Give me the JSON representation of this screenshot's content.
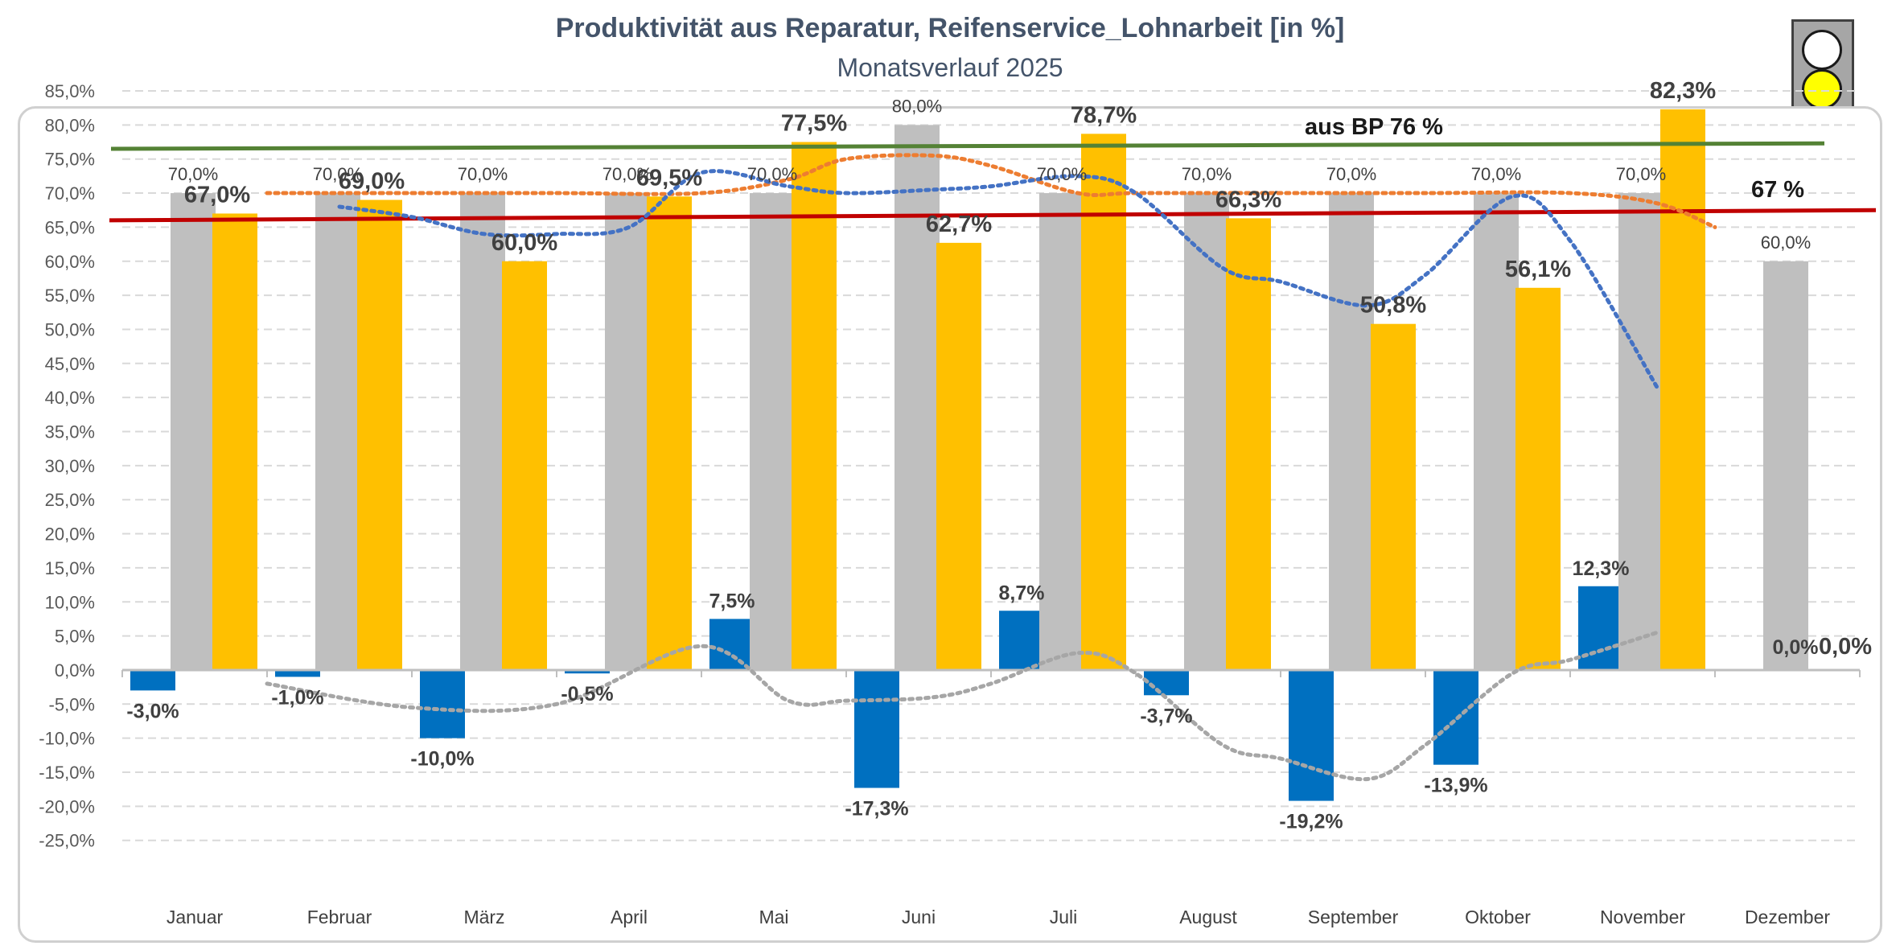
{
  "title": "Produktivität aus Reparatur, Reifenservice_Lohnarbeit [in %]",
  "subtitle": "Monatsverlauf 2025",
  "traffic_light": {
    "active": "yellow",
    "lamps": [
      "off",
      "yellow",
      "off"
    ],
    "colors": {
      "off": "#ffffff",
      "yellow": "#ffff00"
    }
  },
  "chart_data": {
    "type": "bar",
    "categories": [
      "Januar",
      "Februar",
      "März",
      "April",
      "Mai",
      "Juni",
      "Juli",
      "August",
      "September",
      "Oktober",
      "November",
      "Dezember"
    ],
    "ylim": [
      -25,
      85
    ],
    "ytick_step": 5,
    "y_tick_labels": [
      "85,0%",
      "80,0%",
      "75,0%",
      "70,0%",
      "65,0%",
      "60,0%",
      "55,0%",
      "50,0%",
      "45,0%",
      "40,0%",
      "35,0%",
      "30,0%",
      "25,0%",
      "20,0%",
      "15,0%",
      "10,0%",
      "5,0%",
      "0,0%",
      "-5,0%",
      "-10,0%",
      "-15,0%",
      "-20,0%",
      "-25,0%"
    ],
    "grid": true,
    "series": [
      {
        "key": "diff",
        "color": "#0070c0",
        "values": [
          -3.0,
          -1.0,
          -10.0,
          -0.5,
          7.5,
          -17.3,
          8.7,
          -3.7,
          -19.2,
          -13.9,
          12.3,
          0.0
        ],
        "labels": [
          "-3,0%",
          "-1,0%",
          "-10,0%",
          "-0,5%",
          "7,5%",
          "-17,3%",
          "8,7%",
          "-3,7%",
          "-19,2%",
          "-13,9%",
          "12,3%",
          "0,0%"
        ]
      },
      {
        "key": "target",
        "color": "#bfbfbf",
        "values": [
          70,
          70,
          70,
          70,
          70,
          80,
          70,
          70,
          70,
          70,
          70,
          60
        ],
        "labels": [
          "70,0%",
          "70,0%",
          "70,0%",
          "70,0%",
          "70,0%",
          "80,0%",
          "70,0%",
          "70,0%",
          "70,0%",
          "70,0%",
          "70,0%",
          "60,0%"
        ]
      },
      {
        "key": "actual",
        "color": "#ffc000",
        "values": [
          67.0,
          69.0,
          60.0,
          69.5,
          77.5,
          62.7,
          78.7,
          66.3,
          50.8,
          56.1,
          82.3,
          0.0
        ],
        "labels": [
          "67,0%",
          "69,0%",
          "60,0%",
          "69,5%",
          "77,5%",
          "62,7%",
          "78,7%",
          "66,3%",
          "50,8%",
          "56,1%",
          "82,3%",
          "0,0%"
        ]
      }
    ],
    "reference_lines": [
      {
        "label": "aus BP 76 %",
        "value": 76.5,
        "value_end": 77.3,
        "color": "#548235"
      },
      {
        "label": "67 %",
        "value": 66.0,
        "value_end": 67.5,
        "color": "#c00000"
      }
    ],
    "trend_lines": [
      {
        "key": "target-trend",
        "color": "#ed7d31",
        "points": [
          [
            1.0,
            70
          ],
          [
            2.0,
            70
          ],
          [
            3.0,
            70
          ],
          [
            4.0,
            70
          ],
          [
            4.6,
            72
          ],
          [
            5.0,
            75
          ],
          [
            5.6,
            75.5
          ],
          [
            6.0,
            74
          ],
          [
            6.6,
            70
          ],
          [
            7.0,
            70
          ],
          [
            8.0,
            70
          ],
          [
            9.0,
            70
          ],
          [
            10.0,
            70
          ],
          [
            10.6,
            68.5
          ],
          [
            11.0,
            65
          ]
        ]
      },
      {
        "key": "actual-trend",
        "color": "#4472c4",
        "points": [
          [
            1.5,
            68
          ],
          [
            2.0,
            66.5
          ],
          [
            2.5,
            64
          ],
          [
            3.0,
            64
          ],
          [
            3.5,
            65
          ],
          [
            4.0,
            73
          ],
          [
            4.6,
            71
          ],
          [
            5.0,
            70
          ],
          [
            5.6,
            70.5
          ],
          [
            6.0,
            71
          ],
          [
            6.6,
            72.5
          ],
          [
            7.0,
            70
          ],
          [
            7.6,
            59
          ],
          [
            8.0,
            57
          ],
          [
            8.6,
            53.5
          ],
          [
            9.0,
            58
          ],
          [
            9.6,
            69.5
          ],
          [
            10.0,
            63
          ],
          [
            10.6,
            41.5
          ]
        ]
      },
      {
        "key": "diff-trend",
        "color": "#a6a6a6",
        "points": [
          [
            1.0,
            -2
          ],
          [
            2.0,
            -5.5
          ],
          [
            3.0,
            -5
          ],
          [
            4.0,
            3.5
          ],
          [
            4.6,
            -4.5
          ],
          [
            5.0,
            -4.5
          ],
          [
            5.6,
            -4
          ],
          [
            6.0,
            -2
          ],
          [
            6.6,
            2.5
          ],
          [
            7.0,
            -0.5
          ],
          [
            7.6,
            -11
          ],
          [
            8.0,
            -13
          ],
          [
            8.6,
            -16
          ],
          [
            9.0,
            -11
          ],
          [
            9.6,
            -0.5
          ],
          [
            10.0,
            1.5
          ],
          [
            10.6,
            5.5
          ]
        ]
      }
    ]
  }
}
